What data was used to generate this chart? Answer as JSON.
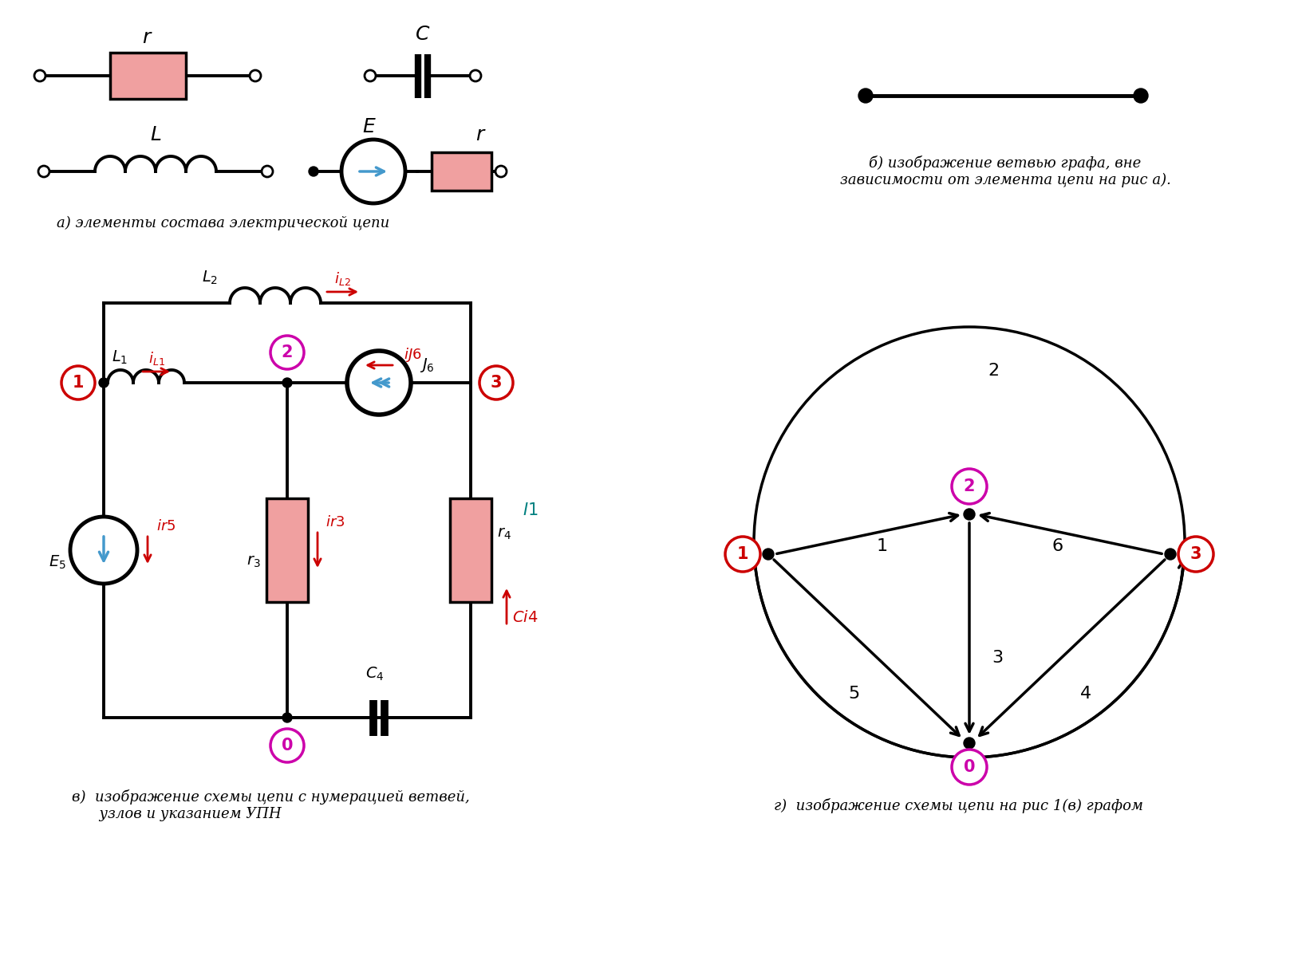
{
  "bg_color": "#ffffff",
  "pink_color": "#f0a0a0",
  "red_color": "#cc0000",
  "blue_color": "#4499cc",
  "black_color": "#000000",
  "magenta_color": "#cc00aa",
  "title_a": "а) элементы состава электрической цепи",
  "title_b": "б) изображение ветвью графа, вне\nзависимости от элемента цепи на рис а).",
  "title_v": "в)  изображение схемы цепи с нумерацией ветвей,\n      узлов и указанием УПН",
  "title_g": "г)  изображение схемы цепи на рис 1(в) графом"
}
